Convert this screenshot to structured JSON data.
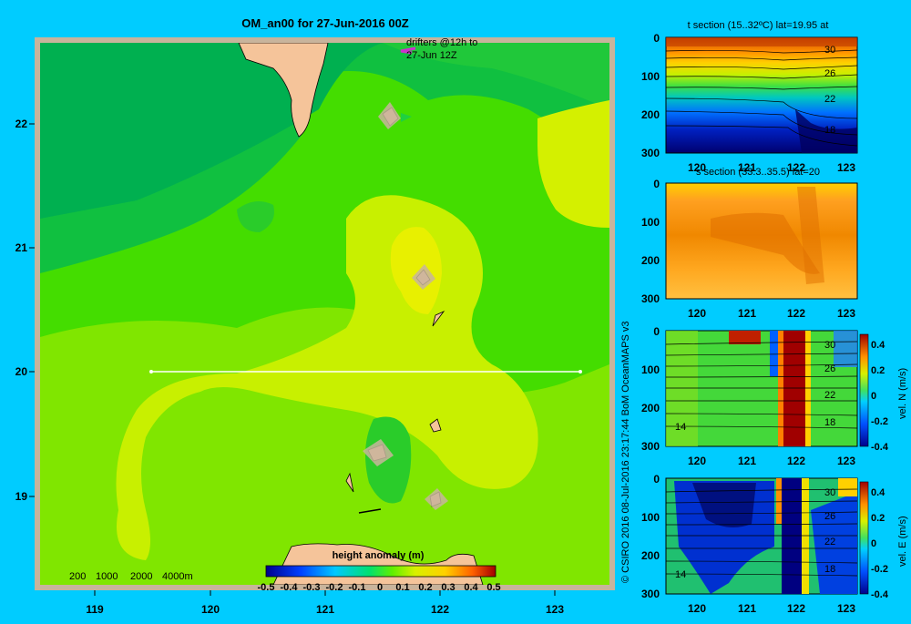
{
  "colors": {
    "background": "#00ccff",
    "land": "#f5c49a",
    "shelf": "#c8b49c",
    "section_line": "#ffffff",
    "drifter": "#cc33cc"
  },
  "main_map": {
    "title": "OM_an00 for 27-Jun-2016 00Z",
    "x_ticks": [
      "119",
      "120",
      "121",
      "122",
      "123"
    ],
    "y_ticks": [
      "22",
      "21",
      "20",
      "19"
    ],
    "drifter_label_1": "drifters @12h to",
    "drifter_label_2": "27-Jun 12Z",
    "depth_legend": [
      "200",
      "1000",
      "2000",
      "4000m"
    ]
  },
  "colorbar": {
    "title": "height anomaly (m)",
    "ticks": [
      "-0.5",
      "-0.4",
      "-0.3",
      "-0.2",
      "-0.1",
      "0",
      "0.1",
      "0.2",
      "0.3",
      "0.4",
      "0.5"
    ]
  },
  "credit": "© CSIRO 2016  08-Jul-2016 23:17:44 BoM OceanMAPS v3",
  "sections": [
    {
      "title": "t section (15..32ºC) lat=19.95 at",
      "y_ticks": [
        "0",
        "100",
        "200",
        "300"
      ],
      "x_ticks": [
        "120",
        "121",
        "122",
        "123"
      ],
      "contour_labels": [
        "30",
        "26",
        "22",
        "18"
      ]
    },
    {
      "title": "s section (33.3..35.5) lat=20",
      "y_ticks": [
        "0",
        "100",
        "200",
        "300"
      ],
      "x_ticks": [
        "120",
        "121",
        "122",
        "123"
      ],
      "contour_labels": []
    },
    {
      "title": "",
      "y_ticks": [
        "0",
        "100",
        "200",
        "300"
      ],
      "x_ticks": [
        "120",
        "121",
        "122",
        "123"
      ],
      "contour_labels": [
        "30",
        "26",
        "22",
        "18",
        "14"
      ],
      "cbar_label": "vel. N (m/s)",
      "cbar_ticks": [
        "0.4",
        "0.2",
        "0",
        "-0.2",
        "-0.4"
      ]
    },
    {
      "title": "",
      "y_ticks": [
        "0",
        "100",
        "200",
        "300"
      ],
      "x_ticks": [
        "120",
        "121",
        "122",
        "123"
      ],
      "contour_labels": [
        "30",
        "26",
        "22",
        "18",
        "14"
      ],
      "cbar_label": "vel. E (m/s)",
      "cbar_ticks": [
        "0.4",
        "0.2",
        "0",
        "-0.2",
        "-0.4"
      ]
    }
  ],
  "chart_data": [
    {
      "type": "heatmap",
      "title": "OM_an00 for 27-Jun-2016 00Z",
      "variable": "height anomaly (m)",
      "xlim": [
        118.5,
        123.5
      ],
      "ylim": [
        18.2,
        22.7
      ],
      "clim": [
        -0.5,
        0.5
      ],
      "section_line": {
        "lon": [
          119.5,
          123.2
        ],
        "lat": [
          20.0,
          20.0
        ]
      }
    },
    {
      "type": "heatmap",
      "title": "t section (15..32ºC) lat=19.95 at",
      "xlim": [
        119.5,
        123.2
      ],
      "ylim": [
        300,
        0
      ]
    },
    {
      "type": "heatmap",
      "title": "s section (33.3..35.5) lat=20",
      "xlim": [
        119.5,
        123.2
      ],
      "ylim": [
        300,
        0
      ]
    },
    {
      "type": "heatmap",
      "title": "",
      "ylabel": "vel. N (m/s)",
      "xlim": [
        119.5,
        123.2
      ],
      "ylim": [
        300,
        0
      ],
      "clim": [
        -0.4,
        0.4
      ]
    },
    {
      "type": "heatmap",
      "title": "",
      "ylabel": "vel. E (m/s)",
      "xlim": [
        119.5,
        123.2
      ],
      "ylim": [
        300,
        0
      ],
      "clim": [
        -0.4,
        0.4
      ]
    }
  ]
}
